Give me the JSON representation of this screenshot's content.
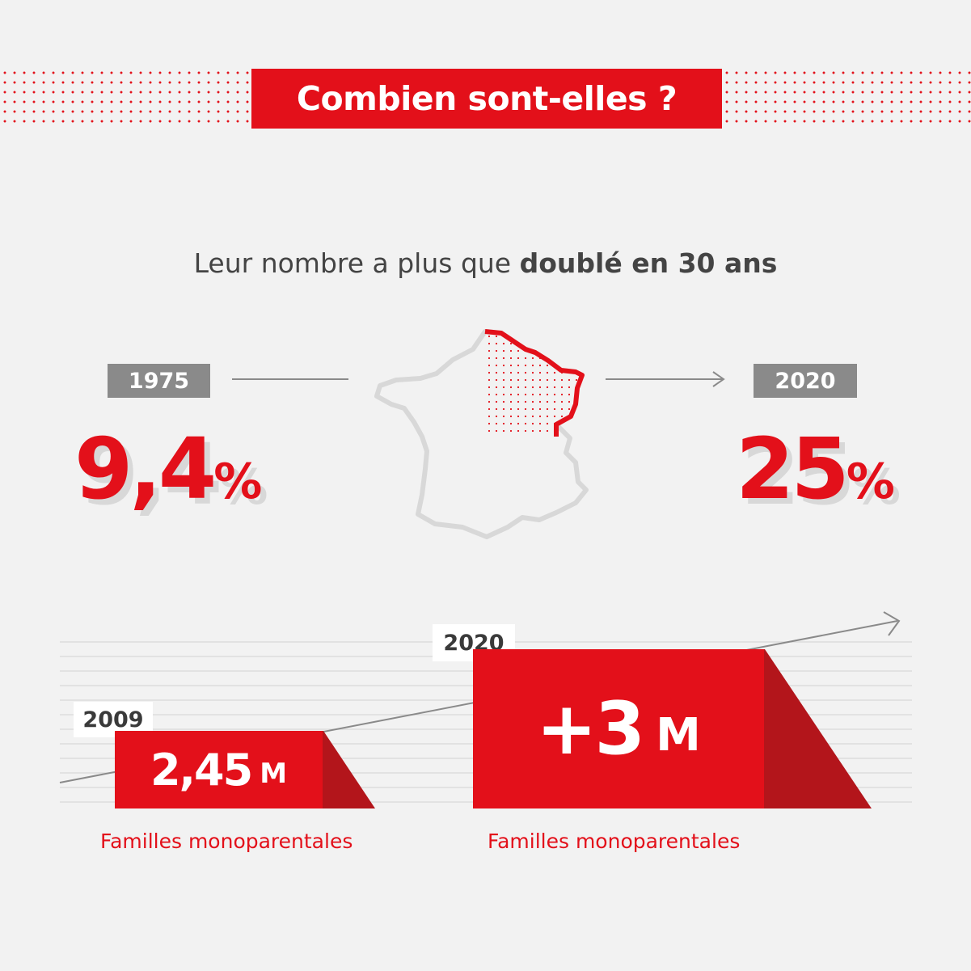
{
  "header": {
    "title": "Combien sont-elles ?"
  },
  "subtitle": {
    "prefix": "Leur nombre a plus que ",
    "emphasis": "doublé en 30 ans"
  },
  "comparison": {
    "left": {
      "year": "1975",
      "value": "9,4",
      "unit": "%"
    },
    "right": {
      "year": "2020",
      "value": "25",
      "unit": "%"
    }
  },
  "families": {
    "left": {
      "year": "2009",
      "value": "2,45",
      "unit": "M",
      "caption": "Familles monoparentales"
    },
    "right": {
      "year": "2020",
      "value": "+3",
      "unit": "M",
      "caption": "Familles monoparentales"
    }
  },
  "colors": {
    "accent": "#e3101a",
    "accent_dark": "#b3151b",
    "tag_grey": "#8a8a8a",
    "background": "#f2f2f2"
  },
  "icons": {
    "map": "france-map-icon",
    "arrow": "arrow-right-icon"
  }
}
